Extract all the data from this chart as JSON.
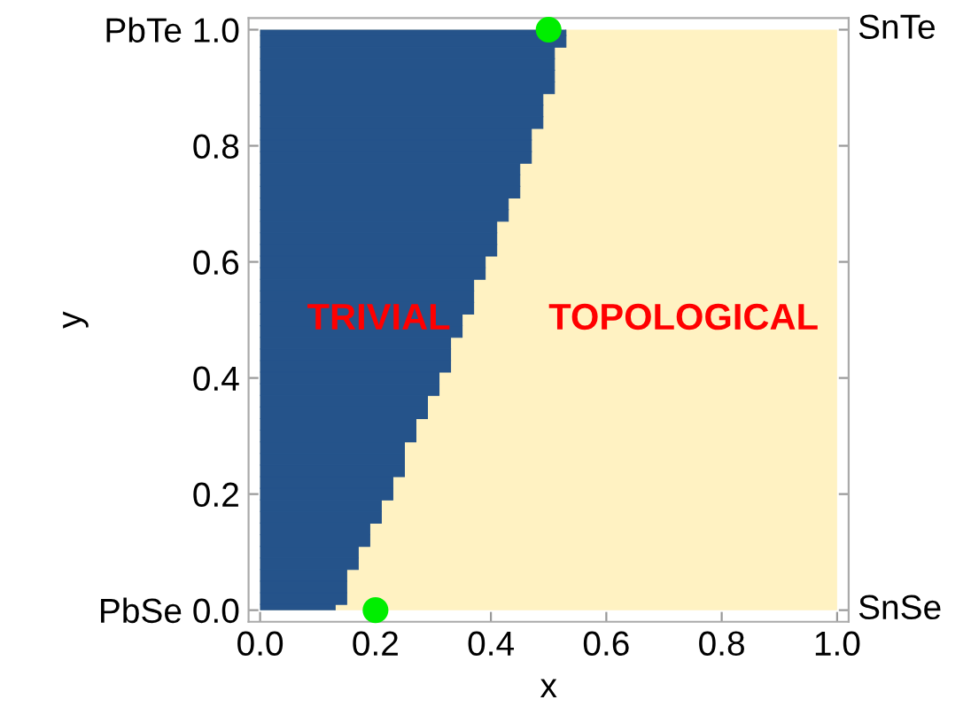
{
  "chart_data": {
    "type": "bar",
    "orientation": "horizontal",
    "xlabel": "x",
    "ylabel": "y",
    "xlim": [
      -0.02,
      1.02
    ],
    "ylim": [
      -0.02,
      1.02
    ],
    "xticks": [
      {
        "value": 0,
        "label": "0.0"
      },
      0.2,
      0.4,
      0.6,
      0.8,
      {
        "value": 1,
        "label": "1.0"
      }
    ],
    "yticks": [
      {
        "value": 0,
        "label": "PbSe 0.0"
      },
      0.2,
      0.4,
      0.6,
      0.8,
      {
        "value": 1,
        "label": "PbTe 1.0"
      }
    ],
    "grid": false,
    "bands": [
      {
        "axis": "x",
        "from": 0,
        "to": 1,
        "color": "#fff2c2"
      }
    ],
    "series": [
      {
        "color": "#25538a",
        "x": [
          0,
          0.02,
          0.04,
          0.06,
          0.08,
          0.1,
          0.12,
          0.14,
          0.16,
          0.18,
          0.2,
          0.22,
          0.24,
          0.26,
          0.28,
          0.3,
          0.32,
          0.34,
          0.36,
          0.38,
          0.4,
          0.42,
          0.44,
          0.46,
          0.48,
          0.5,
          0.52,
          0.54,
          0.56,
          0.58,
          0.6,
          0.62,
          0.64,
          0.66,
          0.68,
          0.7,
          0.72,
          0.74,
          0.76,
          0.78,
          0.8,
          0.82,
          0.84,
          0.86,
          0.88,
          0.9,
          0.92,
          0.94,
          0.96,
          0.98,
          1.0
        ],
        "values": [
          0.13,
          0.15,
          0.15,
          0.15,
          0.17,
          0.17,
          0.19,
          0.19,
          0.21,
          0.21,
          0.23,
          0.23,
          0.25,
          0.25,
          0.25,
          0.27,
          0.27,
          0.29,
          0.29,
          0.31,
          0.31,
          0.33,
          0.33,
          0.33,
          0.35,
          0.35,
          0.37,
          0.37,
          0.37,
          0.39,
          0.39,
          0.41,
          0.41,
          0.41,
          0.43,
          0.43,
          0.45,
          0.45,
          0.45,
          0.47,
          0.47,
          0.47,
          0.49,
          0.49,
          0.49,
          0.51,
          0.51,
          0.51,
          0.51,
          0.53,
          0.53
        ]
      },
      {
        "type": "scatter",
        "color": "#00ee00",
        "marker": "circle",
        "x": [
          0.0,
          1.0
        ],
        "values": [
          0.2,
          0.5
        ]
      }
    ],
    "annotations": [
      "TRIVIAL",
      "TOPOLOGICAL",
      "SnTe",
      "SnSe"
    ]
  }
}
